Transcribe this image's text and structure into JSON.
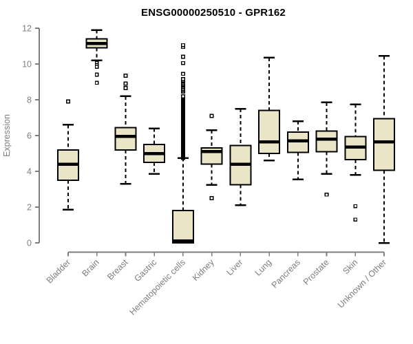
{
  "header": {
    "title": "ENSG00000250510 - GPR162"
  },
  "colors": {
    "background": "#FFFFFF",
    "box_fill": "#EBE5C8",
    "box_stroke": "#000000",
    "median": "#000000",
    "whisker": "#000000",
    "outlier_stroke": "#000000",
    "outlier_fill": "#FFFFFF",
    "axis": "#7E7E7E",
    "tick_label": "#7E7E7E",
    "axis_title": "#7E7E7E",
    "title": "#000000"
  },
  "chart_data": {
    "type": "box",
    "title": "ENSG00000250510 - GPR162",
    "xlabel": "",
    "ylabel": "Expression",
    "ylim": [
      0,
      12
    ],
    "yticks": [
      0,
      2,
      4,
      6,
      8,
      10,
      12
    ],
    "grid": false,
    "legend_position": "none",
    "x_label_rotation_deg": 45,
    "categories": [
      "Bladder",
      "Brain",
      "Breast",
      "Gastric",
      "Hematopoietic cells",
      "Kidney",
      "Liver",
      "Lung",
      "Pancreas",
      "Prostate",
      "Skin",
      "Unknown / Other"
    ],
    "series": [
      {
        "name": "Bladder",
        "whisker_low": 1.85,
        "q1": 3.5,
        "median": 4.4,
        "q3": 5.2,
        "whisker_high": 6.6,
        "outliers": [
          7.9
        ]
      },
      {
        "name": "Brain",
        "whisker_low": 10.2,
        "q1": 10.9,
        "median": 11.15,
        "q3": 11.4,
        "whisker_high": 11.9,
        "outliers": [
          10.05,
          9.95,
          9.85,
          9.4,
          8.95
        ]
      },
      {
        "name": "Breast",
        "whisker_low": 3.3,
        "q1": 5.2,
        "median": 5.95,
        "q3": 6.45,
        "whisker_high": 8.2,
        "outliers": [
          9.35,
          8.9,
          8.65
        ]
      },
      {
        "name": "Gastric",
        "whisker_low": 3.85,
        "q1": 4.5,
        "median": 5.0,
        "q3": 5.5,
        "whisker_high": 6.4,
        "outliers": []
      },
      {
        "name": "Hematopoietic cells",
        "whisker_low": 0,
        "q1": 0,
        "median": 0.1,
        "q3": 1.8,
        "whisker_high": 4.75,
        "outliers": [
          4.75,
          4.8,
          4.85,
          4.9,
          4.95,
          5,
          5.05,
          5.1,
          5.15,
          5.2,
          5.25,
          5.3,
          5.35,
          5.4,
          5.45,
          5.5,
          5.55,
          5.6,
          5.65,
          5.7,
          5.75,
          5.8,
          5.85,
          5.9,
          5.95,
          6,
          6.05,
          6.1,
          6.15,
          6.2,
          6.25,
          6.3,
          6.35,
          6.4,
          6.45,
          6.5,
          6.55,
          6.6,
          6.65,
          6.7,
          6.75,
          6.8,
          6.85,
          6.9,
          6.95,
          7,
          7.05,
          7.1,
          7.15,
          7.2,
          7.25,
          7.3,
          7.35,
          7.4,
          7.45,
          7.5,
          7.55,
          7.6,
          7.65,
          7.7,
          7.75,
          7.8,
          7.85,
          7.9,
          7.95,
          8,
          8.05,
          8.1,
          8.15,
          8.2,
          8.45,
          8.52,
          8.59,
          8.66,
          8.73,
          8.8,
          8.87,
          8.94,
          9.01,
          9.08,
          9.15,
          9.45,
          10.05,
          10.4,
          10.95,
          11.05
        ]
      },
      {
        "name": "Kidney",
        "whisker_low": 3.25,
        "q1": 4.4,
        "median": 5.1,
        "q3": 5.3,
        "whisker_high": 6.3,
        "outliers": [
          7.1,
          2.5
        ]
      },
      {
        "name": "Liver",
        "whisker_low": 2.1,
        "q1": 3.25,
        "median": 4.4,
        "q3": 5.45,
        "whisker_high": 7.5,
        "outliers": []
      },
      {
        "name": "Lung",
        "whisker_low": 4.6,
        "q1": 5.0,
        "median": 5.65,
        "q3": 7.4,
        "whisker_high": 10.35,
        "outliers": []
      },
      {
        "name": "Pancreas",
        "whisker_low": 3.55,
        "q1": 5.05,
        "median": 5.7,
        "q3": 6.2,
        "whisker_high": 6.8,
        "outliers": []
      },
      {
        "name": "Prostate",
        "whisker_low": 3.85,
        "q1": 5.1,
        "median": 5.8,
        "q3": 6.25,
        "whisker_high": 7.85,
        "outliers": [
          2.7
        ]
      },
      {
        "name": "Skin",
        "whisker_low": 3.8,
        "q1": 4.65,
        "median": 5.35,
        "q3": 5.95,
        "whisker_high": 7.75,
        "outliers": [
          2.05,
          1.3
        ]
      },
      {
        "name": "Unknown / Other",
        "whisker_low": 0.0,
        "q1": 4.05,
        "median": 5.65,
        "q3": 6.95,
        "whisker_high": 10.45,
        "outliers": []
      }
    ]
  }
}
